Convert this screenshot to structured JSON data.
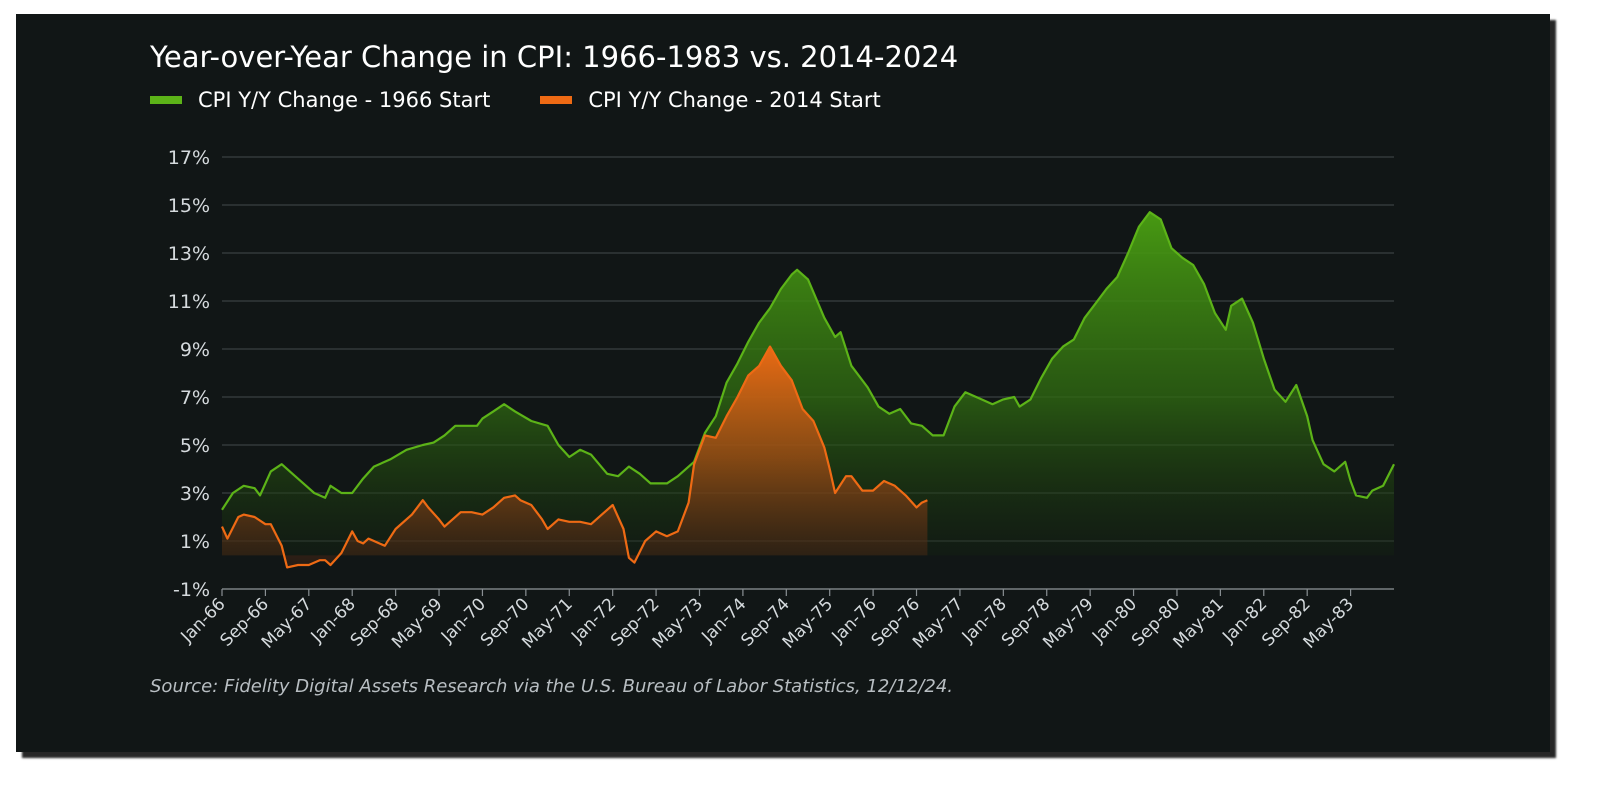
{
  "colors": {
    "background": "#111616",
    "green": "#5cb318",
    "orange": "#ee6a14",
    "grid": "#3a4042"
  },
  "chart_data": {
    "type": "area",
    "title": "Year-over-Year Change in CPI: 1966-1983 vs. 2014-2024",
    "source": "Source: Fidelity Digital Assets Research via the U.S. Bureau of Labor Statistics, 12/12/24.",
    "xlabel": "",
    "ylabel": "",
    "ylim": [
      -1,
      17
    ],
    "y_ticks": [
      -1,
      1,
      3,
      5,
      7,
      9,
      11,
      13,
      15,
      17
    ],
    "y_tick_labels": [
      "-1%",
      "1%",
      "3%",
      "5%",
      "7%",
      "9%",
      "11%",
      "13%",
      "15%",
      "17%"
    ],
    "x_ticks": [
      "Jan-66",
      "Sep-66",
      "May-67",
      "Jan-68",
      "Sep-68",
      "May-69",
      "Jan-70",
      "Sep-70",
      "May-71",
      "Jan-72",
      "Sep-72",
      "May-73",
      "Jan-74",
      "Sep-74",
      "May-75",
      "Jan-76",
      "Sep-76",
      "May-77",
      "Jan-78",
      "Sep-78",
      "May-79",
      "Jan-80",
      "Sep-80",
      "May-81",
      "Jan-82",
      "Sep-82",
      "May-83"
    ],
    "grid": true,
    "legend_position": "top-left",
    "series": [
      {
        "name": "CPI Y/Y Change - 1966 Start",
        "color": "#5cb318",
        "x_start": "Jan-66",
        "points": [
          [
            "Jan-66",
            2.3
          ],
          [
            "Mar-66",
            3.0
          ],
          [
            "May-66",
            3.3
          ],
          [
            "Jul-66",
            3.2
          ],
          [
            "Aug-66",
            2.9
          ],
          [
            "Oct-66",
            3.9
          ],
          [
            "Dec-66",
            4.2
          ],
          [
            "Feb-67",
            3.8
          ],
          [
            "Apr-67",
            3.4
          ],
          [
            "Jun-67",
            3.0
          ],
          [
            "Aug-67",
            2.8
          ],
          [
            "Sep-67",
            3.3
          ],
          [
            "Nov-67",
            3.0
          ],
          [
            "Jan-68",
            3.0
          ],
          [
            "Mar-68",
            3.6
          ],
          [
            "May-68",
            4.1
          ],
          [
            "Aug-68",
            4.4
          ],
          [
            "Nov-68",
            4.8
          ],
          [
            "Feb-69",
            5.0
          ],
          [
            "Apr-69",
            5.1
          ],
          [
            "Jun-69",
            5.4
          ],
          [
            "Aug-69",
            5.8
          ],
          [
            "Dec-69",
            5.8
          ],
          [
            "Jan-70",
            6.1
          ],
          [
            "Mar-70",
            6.4
          ],
          [
            "May-70",
            6.7
          ],
          [
            "Jul-70",
            6.4
          ],
          [
            "Oct-70",
            6.0
          ],
          [
            "Jan-71",
            5.8
          ],
          [
            "Mar-71",
            5.0
          ],
          [
            "May-71",
            4.5
          ],
          [
            "Jul-71",
            4.8
          ],
          [
            "Sep-71",
            4.6
          ],
          [
            "Dec-71",
            3.8
          ],
          [
            "Feb-72",
            3.7
          ],
          [
            "Apr-72",
            4.1
          ],
          [
            "Jun-72",
            3.8
          ],
          [
            "Aug-72",
            3.4
          ],
          [
            "Nov-72",
            3.4
          ],
          [
            "Jan-73",
            3.7
          ],
          [
            "Apr-73",
            4.3
          ],
          [
            "Jun-73",
            5.5
          ],
          [
            "Aug-73",
            6.2
          ],
          [
            "Oct-73",
            7.6
          ],
          [
            "Dec-73",
            8.4
          ],
          [
            "Feb-74",
            9.3
          ],
          [
            "Apr-74",
            10.1
          ],
          [
            "Jun-74",
            10.7
          ],
          [
            "Aug-74",
            11.5
          ],
          [
            "Oct-74",
            12.1
          ],
          [
            "Nov-74",
            12.3
          ],
          [
            "Jan-75",
            11.9
          ],
          [
            "Apr-75",
            10.3
          ],
          [
            "Jun-75",
            9.5
          ],
          [
            "Jul-75",
            9.7
          ],
          [
            "Sep-75",
            8.3
          ],
          [
            "Dec-75",
            7.4
          ],
          [
            "Feb-76",
            6.6
          ],
          [
            "Apr-76",
            6.3
          ],
          [
            "Jun-76",
            6.5
          ],
          [
            "Aug-76",
            5.9
          ],
          [
            "Oct-76",
            5.8
          ],
          [
            "Dec-76",
            5.4
          ],
          [
            "Feb-77",
            5.4
          ],
          [
            "Apr-77",
            6.6
          ],
          [
            "Jun-77",
            7.2
          ],
          [
            "Sep-77",
            6.9
          ],
          [
            "Nov-77",
            6.7
          ],
          [
            "Jan-78",
            6.9
          ],
          [
            "Mar-78",
            7.0
          ],
          [
            "Apr-78",
            6.6
          ],
          [
            "Jun-78",
            6.9
          ],
          [
            "Aug-78",
            7.8
          ],
          [
            "Oct-78",
            8.6
          ],
          [
            "Dec-78",
            9.1
          ],
          [
            "Feb-79",
            9.4
          ],
          [
            "Apr-79",
            10.3
          ],
          [
            "Jun-79",
            10.9
          ],
          [
            "Aug-79",
            11.5
          ],
          [
            "Oct-79",
            12.0
          ],
          [
            "Dec-79",
            13.0
          ],
          [
            "Feb-80",
            14.1
          ],
          [
            "Apr-80",
            14.7
          ],
          [
            "Jun-80",
            14.4
          ],
          [
            "Aug-80",
            13.2
          ],
          [
            "Oct-80",
            12.8
          ],
          [
            "Dec-80",
            12.5
          ],
          [
            "Feb-81",
            11.7
          ],
          [
            "Apr-81",
            10.5
          ],
          [
            "Jun-81",
            9.8
          ],
          [
            "Jul-81",
            10.8
          ],
          [
            "Sep-81",
            11.1
          ],
          [
            "Nov-81",
            10.1
          ],
          [
            "Jan-82",
            8.6
          ],
          [
            "Mar-82",
            7.3
          ],
          [
            "May-82",
            6.8
          ],
          [
            "Jul-82",
            7.5
          ],
          [
            "Sep-82",
            6.2
          ],
          [
            "Oct-82",
            5.2
          ],
          [
            "Dec-82",
            4.2
          ],
          [
            "Feb-83",
            3.9
          ],
          [
            "Apr-83",
            4.3
          ],
          [
            "May-83",
            3.5
          ],
          [
            "Jun-83",
            2.9
          ],
          [
            "Aug-83",
            2.8
          ],
          [
            "Sep-83",
            3.1
          ],
          [
            "Nov-83",
            3.3
          ],
          [
            "Jan-84",
            4.2
          ]
        ]
      },
      {
        "name": "CPI Y/Y Change - 2014 Start",
        "color": "#ee6a14",
        "x_start": "Jan-14",
        "points": [
          [
            "Jan-14",
            1.6
          ],
          [
            "Feb-14",
            1.1
          ],
          [
            "Apr-14",
            2.0
          ],
          [
            "May-14",
            2.1
          ],
          [
            "Jul-14",
            2.0
          ],
          [
            "Sep-14",
            1.7
          ],
          [
            "Oct-14",
            1.7
          ],
          [
            "Dec-14",
            0.8
          ],
          [
            "Jan-15",
            -0.1
          ],
          [
            "Mar-15",
            0.0
          ],
          [
            "May-15",
            0.0
          ],
          [
            "Jul-15",
            0.2
          ],
          [
            "Aug-15",
            0.2
          ],
          [
            "Sep-15",
            0.0
          ],
          [
            "Nov-15",
            0.5
          ],
          [
            "Jan-16",
            1.4
          ],
          [
            "Feb-16",
            1.0
          ],
          [
            "Mar-16",
            0.9
          ],
          [
            "Apr-16",
            1.1
          ],
          [
            "May-16",
            1.0
          ],
          [
            "Jul-16",
            0.8
          ],
          [
            "Sep-16",
            1.5
          ],
          [
            "Dec-16",
            2.1
          ],
          [
            "Feb-17",
            2.7
          ],
          [
            "Mar-17",
            2.4
          ],
          [
            "May-17",
            1.9
          ],
          [
            "Jun-17",
            1.6
          ],
          [
            "Sep-17",
            2.2
          ],
          [
            "Nov-17",
            2.2
          ],
          [
            "Jan-18",
            2.1
          ],
          [
            "Mar-18",
            2.4
          ],
          [
            "May-18",
            2.8
          ],
          [
            "Jul-18",
            2.9
          ],
          [
            "Aug-18",
            2.7
          ],
          [
            "Oct-18",
            2.5
          ],
          [
            "Nov-18",
            2.2
          ],
          [
            "Dec-18",
            1.9
          ],
          [
            "Jan-19",
            1.5
          ],
          [
            "Mar-19",
            1.9
          ],
          [
            "May-19",
            1.8
          ],
          [
            "Jul-19",
            1.8
          ],
          [
            "Sep-19",
            1.7
          ],
          [
            "Nov-19",
            2.1
          ],
          [
            "Jan-20",
            2.5
          ],
          [
            "Mar-20",
            1.5
          ],
          [
            "Apr-20",
            0.3
          ],
          [
            "May-20",
            0.1
          ],
          [
            "Jul-20",
            1.0
          ],
          [
            "Sep-20",
            1.4
          ],
          [
            "Nov-20",
            1.2
          ],
          [
            "Jan-21",
            1.4
          ],
          [
            "Mar-21",
            2.6
          ],
          [
            "Apr-21",
            4.2
          ],
          [
            "Jun-21",
            5.4
          ],
          [
            "Aug-21",
            5.3
          ],
          [
            "Oct-21",
            6.2
          ],
          [
            "Dec-21",
            7.0
          ],
          [
            "Feb-22",
            7.9
          ],
          [
            "Apr-22",
            8.3
          ],
          [
            "Jun-22",
            9.1
          ],
          [
            "Aug-22",
            8.3
          ],
          [
            "Oct-22",
            7.7
          ],
          [
            "Dec-22",
            6.5
          ],
          [
            "Feb-23",
            6.0
          ],
          [
            "Apr-23",
            4.9
          ],
          [
            "May-23",
            4.0
          ],
          [
            "Jun-23",
            3.0
          ],
          [
            "Aug-23",
            3.7
          ],
          [
            "Sep-23",
            3.7
          ],
          [
            "Nov-23",
            3.1
          ],
          [
            "Jan-24",
            3.1
          ],
          [
            "Mar-24",
            3.5
          ],
          [
            "May-24",
            3.3
          ],
          [
            "Jul-24",
            2.9
          ],
          [
            "Sep-24",
            2.4
          ],
          [
            "Oct-24",
            2.6
          ],
          [
            "Nov-24",
            2.7
          ]
        ]
      }
    ]
  }
}
